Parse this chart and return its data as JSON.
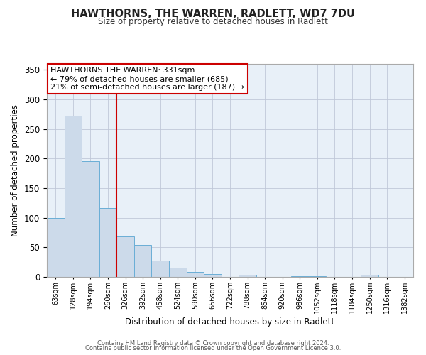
{
  "title": "HAWTHORNS, THE WARREN, RADLETT, WD7 7DU",
  "subtitle": "Size of property relative to detached houses in Radlett",
  "xlabel": "Distribution of detached houses by size in Radlett",
  "ylabel": "Number of detached properties",
  "bar_color": "#ccdaea",
  "bar_edge_color": "#6aaed6",
  "background_color": "#ffffff",
  "plot_bg_color": "#e8f0f8",
  "grid_color": "#c0c8d8",
  "annotation_box_color": "#cc0000",
  "vline_color": "#cc0000",
  "vline_position": 4,
  "annotation_title": "HAWTHORNS THE WARREN: 331sqm",
  "annotation_line1": "← 79% of detached houses are smaller (685)",
  "annotation_line2": "21% of semi-detached houses are larger (187) →",
  "bins": [
    "63sqm",
    "128sqm",
    "194sqm",
    "260sqm",
    "326sqm",
    "392sqm",
    "458sqm",
    "524sqm",
    "590sqm",
    "656sqm",
    "722sqm",
    "788sqm",
    "854sqm",
    "920sqm",
    "986sqm",
    "1052sqm",
    "1118sqm",
    "1184sqm",
    "1250sqm",
    "1316sqm",
    "1382sqm"
  ],
  "values": [
    100,
    272,
    196,
    116,
    68,
    54,
    28,
    16,
    9,
    5,
    0,
    4,
    0,
    0,
    1,
    1,
    0,
    0,
    4,
    0,
    0
  ],
  "ylim": [
    0,
    360
  ],
  "yticks": [
    0,
    50,
    100,
    150,
    200,
    250,
    300,
    350
  ],
  "footer1": "Contains HM Land Registry data © Crown copyright and database right 2024.",
  "footer2": "Contains public sector information licensed under the Open Government Licence 3.0."
}
